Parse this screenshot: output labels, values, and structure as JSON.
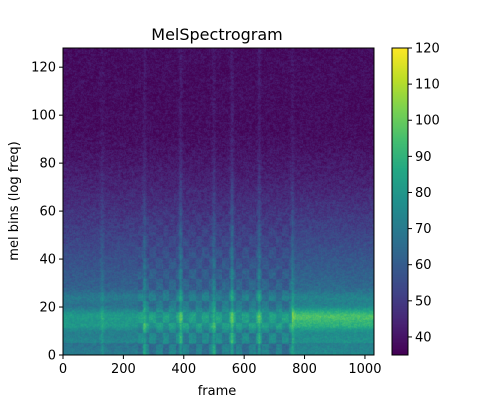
{
  "chart_data": {
    "type": "heatmap",
    "title": "MelSpectrogram",
    "xlabel": "frame",
    "ylabel": "mel bins (log freq)",
    "xlim": [
      0,
      1030
    ],
    "ylim": [
      0,
      128
    ],
    "x_ticks": [
      0,
      200,
      400,
      600,
      800,
      1000
    ],
    "y_ticks": [
      0,
      20,
      40,
      60,
      80,
      100,
      120
    ],
    "x_tick_labels": [
      "0",
      "200",
      "400",
      "600",
      "800",
      "1000"
    ],
    "y_tick_labels": [
      "0",
      "20",
      "40",
      "60",
      "80",
      "100",
      "120"
    ],
    "colorbar": {
      "colormap": "viridis",
      "range": [
        35,
        120
      ],
      "ticks": [
        40,
        50,
        60,
        70,
        80,
        90,
        100,
        110,
        120
      ],
      "tick_labels": [
        "40",
        "50",
        "60",
        "70",
        "80",
        "90",
        "100",
        "110",
        "120"
      ]
    },
    "estimated_features": {
      "strong_band_mel_bins": [
        12,
        18
      ],
      "bright_low_band_from_frame": 760,
      "vertical_transients_frames": [
        130,
        270,
        390,
        500,
        560,
        650,
        760
      ],
      "noise_floor_value": 38,
      "peak_value": 98
    }
  }
}
